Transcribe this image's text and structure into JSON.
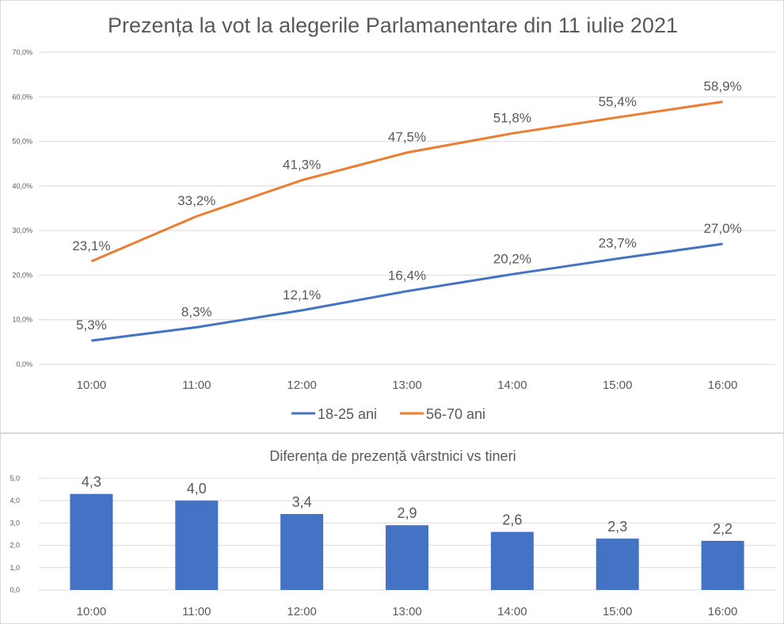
{
  "chart_data": [
    {
      "type": "line",
      "title": "Prezența la vot la alegerile Parlamanentare din 11 iulie 2021",
      "categories": [
        "10:00",
        "11:00",
        "12:00",
        "13:00",
        "14:00",
        "15:00",
        "16:00"
      ],
      "series": [
        {
          "name": "18-25 ani",
          "color": "#4472C4",
          "values": [
            5.3,
            8.3,
            12.1,
            16.4,
            20.2,
            23.7,
            27.0
          ],
          "labels": [
            "5,3%",
            "8,3%",
            "12,1%",
            "16,4%",
            "20,2%",
            "23,7%",
            "27,0%"
          ]
        },
        {
          "name": "56-70 ani",
          "color": "#ED7D31",
          "values": [
            23.1,
            33.2,
            41.3,
            47.5,
            51.8,
            55.4,
            58.9
          ],
          "labels": [
            "23,1%",
            "33,2%",
            "41,3%",
            "47,5%",
            "51,8%",
            "55,4%",
            "58,9%"
          ]
        }
      ],
      "ylim": [
        0,
        70
      ],
      "yticks": [
        "0,0%",
        "10,0%",
        "20,0%",
        "30,0%",
        "40,0%",
        "50,0%",
        "60,0%",
        "70,0%"
      ],
      "grid": true,
      "legend": "bottom"
    },
    {
      "type": "bar",
      "title": "Diferența de prezență vârstnici vs tineri",
      "categories": [
        "10:00",
        "11:00",
        "12:00",
        "13:00",
        "14:00",
        "15:00",
        "16:00"
      ],
      "values": [
        4.3,
        4.0,
        3.4,
        2.9,
        2.6,
        2.3,
        2.2
      ],
      "labels": [
        "4,3",
        "4,0",
        "3,4",
        "2,9",
        "2,6",
        "2,3",
        "2,2"
      ],
      "color": "#4472C4",
      "ylim": [
        0,
        5
      ],
      "yticks": [
        "0,0",
        "1,0",
        "2,0",
        "3,0",
        "4,0",
        "5,0"
      ],
      "grid": true
    }
  ]
}
